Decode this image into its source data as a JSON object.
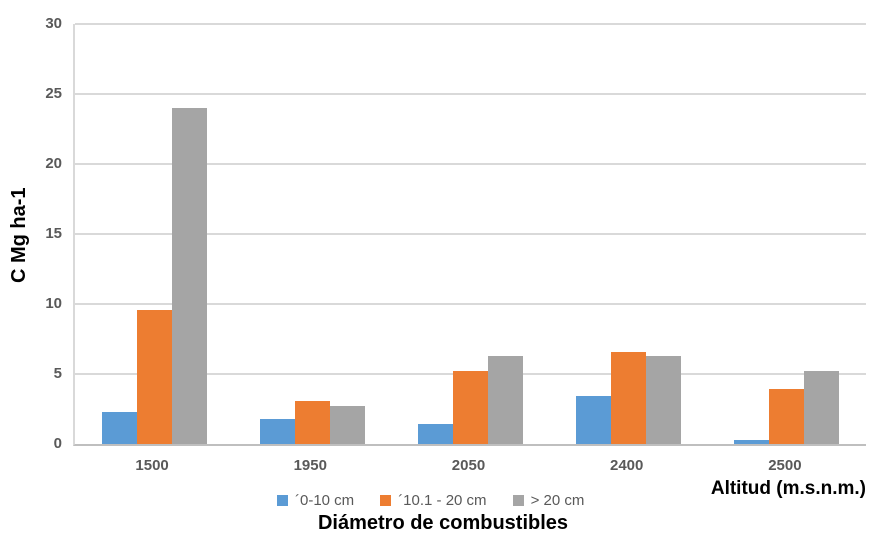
{
  "chart_data": {
    "type": "bar",
    "title": "",
    "categories": [
      "1500",
      "1950",
      "2050",
      "2400",
      "2500"
    ],
    "series": [
      {
        "name": "´0-10 cm",
        "color": "#5B9BD5",
        "values": [
          2.3,
          1.8,
          1.4,
          3.4,
          0.3
        ]
      },
      {
        "name": "´10.1 - 20 cm",
        "color": "#ED7D31",
        "values": [
          9.6,
          3.1,
          5.2,
          6.6,
          3.9
        ]
      },
      {
        "name": "> 20 cm",
        "color": "#A5A5A5",
        "values": [
          24.0,
          2.7,
          6.3,
          6.3,
          5.2
        ]
      }
    ],
    "ylabel": "C Mg ha-1",
    "xlabel": "Diámetro de combustibles",
    "x_axis_unit_label": "Altitud (m.s.n.m.)",
    "ylim": [
      0,
      30
    ],
    "yticks": [
      0,
      5,
      10,
      15,
      20,
      25,
      30
    ],
    "grid": true,
    "legend_position": "bottom",
    "colors": {
      "gridline": "#D9D9D9",
      "axis_line": "#BFBFBF",
      "tick_label": "#595959",
      "axis_title": "#000000",
      "background": "#FFFFFF"
    }
  }
}
